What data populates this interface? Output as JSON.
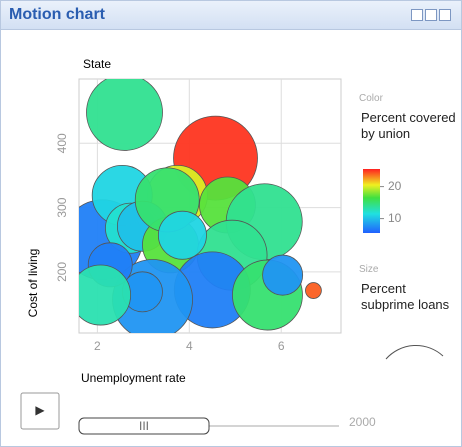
{
  "window": {
    "title": "Motion chart"
  },
  "chart_data": {
    "type": "bubble",
    "title": "State",
    "x_label": "Unemployment rate",
    "y_label": "Cost of living",
    "x": [
      2.59,
      4.57,
      3.74,
      2.11,
      2.54,
      2.72,
      2.98,
      3.59,
      3.52,
      4.83,
      5.63,
      4.93,
      4.5,
      5.7,
      3.2,
      2.98,
      2.28,
      6.7,
      2.07,
      3.85,
      6.03
    ],
    "y": [
      448,
      377,
      319,
      250,
      319,
      268,
      271,
      242,
      312,
      304,
      278,
      226,
      172,
      164,
      157,
      169,
      211,
      171,
      164,
      257,
      195
    ],
    "sizes": [
      29.5,
      36,
      18.4,
      32.7,
      18.4,
      12.8,
      12.8,
      16,
      20.9,
      16,
      29.5,
      25,
      29.5,
      25,
      32.7,
      8.2,
      9.9,
      1.3,
      18.4,
      11.8,
      8.2
    ],
    "color_values": [
      14,
      25,
      20,
      7,
      11,
      12,
      10,
      17,
      15,
      17,
      14,
      14,
      7,
      15,
      8,
      8,
      7,
      24,
      13,
      11,
      8
    ],
    "xlim": [
      1.6,
      7.3
    ],
    "xticks": [
      2,
      4,
      6
    ],
    "ylim": [
      105,
      500
    ],
    "yticks": [
      200,
      300,
      400
    ],
    "grid": true,
    "color_legend": {
      "heading": "Color",
      "label": "Percent covered by union",
      "lim": [
        5.5,
        25.5
      ],
      "ticks": [
        10,
        20
      ]
    },
    "size_legend": {
      "heading": "Size",
      "label": "Percent subprime loans"
    }
  },
  "controls": {
    "play": "▶",
    "slider_grip": "III",
    "year": "2000"
  }
}
